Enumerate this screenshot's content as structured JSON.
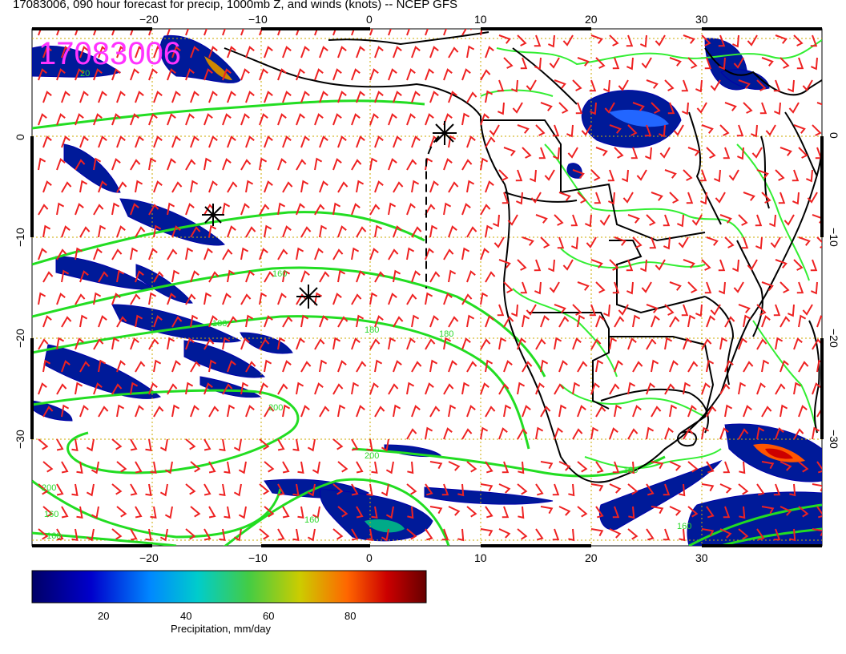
{
  "header": {
    "title": "17083006, 090 hour forecast for precip, 1000mb Z, and winds (knots) -- NCEP GFS"
  },
  "map": {
    "stamp": "17083006",
    "lon_range": [
      -30,
      42
    ],
    "lat_range": [
      -40,
      9
    ],
    "lon_ticks": [
      "−20",
      "−10",
      "0",
      "10",
      "20",
      "30"
    ],
    "lat_ticks": [
      "0",
      "−10",
      "−20",
      "−30"
    ],
    "contour_labels": [
      "20",
      "160",
      "180",
      "180",
      "180",
      "200",
      "200",
      "200",
      "160",
      "160",
      "160",
      "160",
      "160"
    ],
    "colors": {
      "contour": "#22dd22",
      "wind_barb": "#ee2222",
      "grid": "#ccaa00",
      "land_border": "#000000",
      "precip_low": "#000080",
      "stamp": "#ff33ff"
    }
  },
  "colorbar": {
    "label": "Precipitation, mm/day",
    "ticks": [
      "20",
      "40",
      "60",
      "80"
    ]
  }
}
